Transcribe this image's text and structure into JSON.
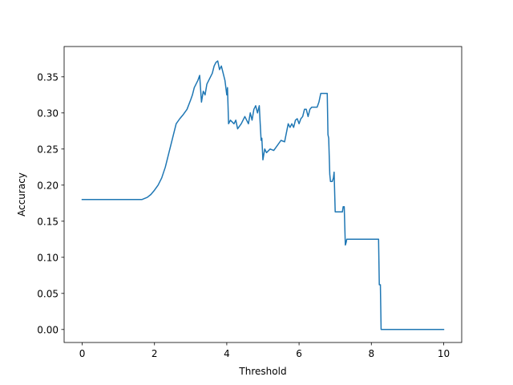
{
  "chart_data": {
    "type": "line",
    "title": "",
    "xlabel": "Threshold",
    "ylabel": "Accuracy",
    "xlim": [
      -0.5,
      10.5
    ],
    "ylim": [
      -0.018,
      0.392
    ],
    "xticks": [
      0,
      2,
      4,
      6,
      8,
      10
    ],
    "xtick_labels": [
      "0",
      "2",
      "4",
      "6",
      "8",
      "10"
    ],
    "yticks": [
      0.0,
      0.05,
      0.1,
      0.15,
      0.2,
      0.25,
      0.3,
      0.35
    ],
    "ytick_labels": [
      "0.00",
      "0.05",
      "0.10",
      "0.15",
      "0.20",
      "0.25",
      "0.30",
      "0.35"
    ],
    "grid": false,
    "series": [
      {
        "color": "#1f77b4",
        "x": [
          0,
          0.5,
          1.0,
          1.5,
          1.65,
          1.8,
          1.9,
          2.0,
          2.1,
          2.2,
          2.3,
          2.4,
          2.5,
          2.6,
          2.7,
          2.8,
          2.9,
          3.0,
          3.05,
          3.1,
          3.15,
          3.2,
          3.25,
          3.3,
          3.35,
          3.4,
          3.45,
          3.5,
          3.55,
          3.6,
          3.65,
          3.7,
          3.75,
          3.8,
          3.85,
          3.9,
          3.95,
          4.0,
          4.02,
          4.05,
          4.1,
          4.2,
          4.25,
          4.3,
          4.4,
          4.5,
          4.6,
          4.65,
          4.7,
          4.75,
          4.8,
          4.85,
          4.9,
          4.92,
          4.95,
          4.97,
          5.0,
          5.05,
          5.1,
          5.2,
          5.3,
          5.4,
          5.5,
          5.6,
          5.7,
          5.75,
          5.8,
          5.85,
          5.9,
          5.95,
          6.0,
          6.05,
          6.1,
          6.15,
          6.2,
          6.25,
          6.3,
          6.35,
          6.4,
          6.45,
          6.5,
          6.55,
          6.6,
          6.65,
          6.7,
          6.75,
          6.78,
          6.8,
          6.82,
          6.85,
          6.87,
          6.9,
          6.92,
          6.95,
          6.97,
          7.0,
          7.1,
          7.2,
          7.22,
          7.25,
          7.28,
          7.3,
          7.32,
          7.5,
          8.0,
          8.2,
          8.22,
          8.25,
          8.27,
          8.3,
          8.5,
          9.0,
          9.5,
          10.0
        ],
        "y": [
          0.18,
          0.18,
          0.18,
          0.18,
          0.18,
          0.183,
          0.187,
          0.193,
          0.2,
          0.21,
          0.225,
          0.245,
          0.265,
          0.285,
          0.292,
          0.298,
          0.305,
          0.318,
          0.325,
          0.335,
          0.34,
          0.345,
          0.352,
          0.315,
          0.33,
          0.325,
          0.34,
          0.345,
          0.35,
          0.355,
          0.365,
          0.37,
          0.372,
          0.36,
          0.365,
          0.355,
          0.345,
          0.325,
          0.335,
          0.285,
          0.29,
          0.285,
          0.29,
          0.278,
          0.285,
          0.295,
          0.285,
          0.3,
          0.29,
          0.305,
          0.31,
          0.3,
          0.31,
          0.29,
          0.262,
          0.265,
          0.235,
          0.25,
          0.245,
          0.25,
          0.248,
          0.255,
          0.262,
          0.26,
          0.285,
          0.28,
          0.285,
          0.28,
          0.29,
          0.292,
          0.285,
          0.292,
          0.295,
          0.305,
          0.305,
          0.295,
          0.305,
          0.308,
          0.308,
          0.308,
          0.308,
          0.315,
          0.327,
          0.327,
          0.327,
          0.327,
          0.327,
          0.27,
          0.265,
          0.215,
          0.205,
          0.205,
          0.205,
          0.21,
          0.218,
          0.163,
          0.163,
          0.163,
          0.17,
          0.17,
          0.117,
          0.12,
          0.125,
          0.125,
          0.125,
          0.125,
          0.062,
          0.062,
          0.0,
          0.0,
          0.0,
          0.0,
          0.0,
          0.0
        ]
      }
    ]
  }
}
